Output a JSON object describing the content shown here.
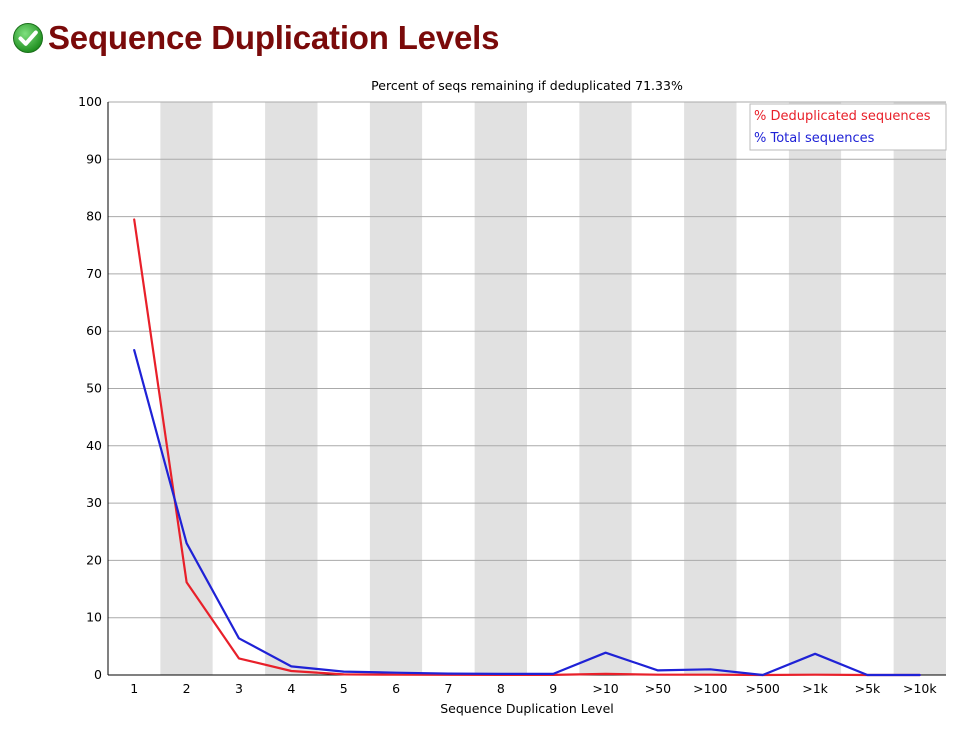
{
  "header": {
    "title": "Sequence Duplication Levels",
    "status_icon": "check-icon",
    "status_color": "#2aa52a"
  },
  "chart_data": {
    "type": "line",
    "title": "Percent of seqs remaining if deduplicated 71.33%",
    "xlabel": "Sequence Duplication Level",
    "ylabel": "",
    "categories": [
      "1",
      "2",
      "3",
      "4",
      "5",
      "6",
      "7",
      "8",
      "9",
      ">10",
      ">50",
      ">100",
      ">500",
      ">1k",
      ">5k",
      ">10k"
    ],
    "ylim": [
      0,
      100
    ],
    "yticks": [
      0,
      10,
      20,
      30,
      40,
      50,
      60,
      70,
      80,
      90,
      100
    ],
    "grid": true,
    "legend_position": "top-right",
    "series": [
      {
        "name": "% Deduplicated sequences",
        "color": "#e8202a",
        "values": [
          79.5,
          16.2,
          2.9,
          0.7,
          0.1,
          0.05,
          0.03,
          0.02,
          0.02,
          0.2,
          0.05,
          0.05,
          0.0,
          0.05,
          0.0,
          0.0
        ]
      },
      {
        "name": "% Total sequences",
        "color": "#1f22d6",
        "values": [
          56.7,
          23.0,
          6.4,
          1.5,
          0.6,
          0.4,
          0.25,
          0.2,
          0.2,
          3.9,
          0.8,
          1.0,
          0.0,
          3.7,
          0.0,
          0.0
        ]
      }
    ],
    "band_colors": [
      "#ffffff",
      "#e1e1e1"
    ]
  }
}
